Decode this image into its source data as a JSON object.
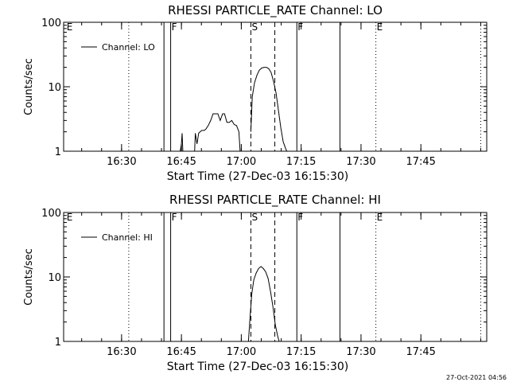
{
  "footer": {
    "timestamp": "27-Oct-2021 04:56"
  },
  "chart_data": [
    {
      "type": "line",
      "title": "RHESSI PARTICLE_RATE Channel: LO",
      "ylabel": "Counts/sec",
      "xlabel": "Start Time (27-Dec-03 16:15:30)",
      "yscale": "log",
      "ylim": [
        1,
        100
      ],
      "y_ticks": [
        {
          "value": 1,
          "label": "1"
        },
        {
          "value": 10,
          "label": "10"
        },
        {
          "value": 100,
          "label": "100"
        }
      ],
      "xlim": [
        16.258,
        18.025
      ],
      "x_ticks": [
        {
          "value": 16.5,
          "label": "16:30"
        },
        {
          "value": 16.75,
          "label": "16:45"
        },
        {
          "value": 17.0,
          "label": "17:00"
        },
        {
          "value": 17.25,
          "label": "17:15"
        },
        {
          "value": 17.5,
          "label": "17:30"
        },
        {
          "value": 17.75,
          "label": "17:45"
        }
      ],
      "legend": {
        "label": "Channel: LO",
        "placement": "top-left"
      },
      "markers": [
        {
          "x": 16.267,
          "label": "E",
          "style": "none"
        },
        {
          "x": 16.53,
          "label": "",
          "style": "dotted"
        },
        {
          "x": 16.677,
          "label": "",
          "style": "solid"
        },
        {
          "x": 16.705,
          "label": "F",
          "style": "solid"
        },
        {
          "x": 17.04,
          "label": "S",
          "style": "dashed"
        },
        {
          "x": 17.14,
          "label": "",
          "style": "dashed"
        },
        {
          "x": 17.232,
          "label": "F",
          "style": "solid"
        },
        {
          "x": 17.412,
          "label": "",
          "style": "solid"
        },
        {
          "x": 17.562,
          "label": "E",
          "style": "dotted"
        },
        {
          "x": 18.0,
          "label": "",
          "style": "dotted"
        }
      ],
      "series": [
        {
          "name": "Channel: LO",
          "x": [
            16.71,
            16.719,
            16.729
          ],
          "y": [
            1,
            1,
            1
          ]
        },
        {
          "name": "Channel: LO",
          "x": [
            16.745,
            16.75,
            16.753,
            16.756
          ],
          "y": [
            1,
            1.3,
            1.9,
            1
          ]
        },
        {
          "name": "Channel: LO",
          "x": [
            16.805,
            16.808,
            16.815,
            16.822,
            16.828,
            16.835,
            16.84,
            16.845,
            16.852,
            16.862,
            16.872,
            16.882,
            16.892,
            16.902,
            16.912,
            16.922,
            16.93,
            16.94,
            16.95,
            16.96,
            16.97,
            16.98,
            16.99,
            16.995
          ],
          "y": [
            1,
            1.9,
            1.3,
            1.9,
            2,
            2.1,
            2.1,
            2.1,
            2.2,
            2.5,
            3,
            3.8,
            3.8,
            3.8,
            3,
            3.8,
            3.8,
            2.8,
            2.8,
            3,
            2.6,
            2.5,
            2,
            1
          ]
        },
        {
          "name": "Channel: LO",
          "x": [
            17.04,
            17.046,
            17.055,
            17.065,
            17.075,
            17.085,
            17.095,
            17.105,
            17.115,
            17.125,
            17.135,
            17.145,
            17.155,
            17.165,
            17.175,
            17.185,
            17.19
          ],
          "y": [
            2,
            7,
            11.5,
            15,
            18,
            19.5,
            20,
            20,
            19,
            16.5,
            12,
            8,
            4.3,
            2.3,
            1.4,
            1.1,
            1
          ]
        }
      ]
    },
    {
      "type": "line",
      "title": "RHESSI PARTICLE_RATE Channel: HI",
      "ylabel": "Counts/sec",
      "xlabel": "Start Time (27-Dec-03 16:15:30)",
      "yscale": "log",
      "ylim": [
        1,
        100
      ],
      "y_ticks": [
        {
          "value": 1,
          "label": "1"
        },
        {
          "value": 10,
          "label": "10"
        },
        {
          "value": 100,
          "label": "100"
        }
      ],
      "xlim": [
        16.258,
        18.025
      ],
      "x_ticks": [
        {
          "value": 16.5,
          "label": "16:30"
        },
        {
          "value": 16.75,
          "label": "16:45"
        },
        {
          "value": 17.0,
          "label": "17:00"
        },
        {
          "value": 17.25,
          "label": "17:15"
        },
        {
          "value": 17.5,
          "label": "17:30"
        },
        {
          "value": 17.75,
          "label": "17:45"
        }
      ],
      "legend": {
        "label": "Channel: HI",
        "placement": "top-left"
      },
      "markers": [
        {
          "x": 16.267,
          "label": "E",
          "style": "none"
        },
        {
          "x": 16.53,
          "label": "",
          "style": "dotted"
        },
        {
          "x": 16.677,
          "label": "",
          "style": "solid"
        },
        {
          "x": 16.705,
          "label": "F",
          "style": "solid"
        },
        {
          "x": 17.04,
          "label": "S",
          "style": "dashed"
        },
        {
          "x": 17.14,
          "label": "",
          "style": "dashed"
        },
        {
          "x": 17.232,
          "label": "F",
          "style": "solid"
        },
        {
          "x": 17.412,
          "label": "",
          "style": "solid"
        },
        {
          "x": 17.562,
          "label": "E",
          "style": "dotted"
        },
        {
          "x": 18.0,
          "label": "",
          "style": "dotted"
        }
      ],
      "series": [
        {
          "name": "Channel: HI",
          "x": [
            17.03,
            17.036,
            17.044,
            17.052,
            17.062,
            17.072,
            17.082,
            17.092,
            17.102,
            17.112,
            17.122,
            17.132,
            17.142,
            17.152,
            17.158
          ],
          "y": [
            1,
            2.2,
            5.5,
            9,
            11.5,
            13.5,
            14.5,
            13.5,
            12,
            9.5,
            6,
            3.5,
            1.8,
            1.2,
            1
          ]
        }
      ]
    }
  ]
}
